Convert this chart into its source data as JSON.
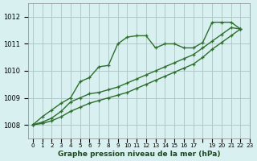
{
  "title": "Graphe pression niveau de la mer (hPa)",
  "bg_color": "#d8f0f0",
  "grid_color": "#b0c8c8",
  "line_color": "#2d6e2d",
  "ylim": [
    1007.5,
    1012.5
  ],
  "yticks": [
    1008,
    1009,
    1010,
    1011,
    1012
  ],
  "series1": [
    1008.0,
    1008.3,
    1008.55,
    1008.8,
    1009.0,
    1009.6,
    1009.75,
    1010.15,
    1010.2,
    1011.0,
    1011.25,
    1011.3,
    1011.3,
    1010.85,
    1011.0,
    1011.0,
    1010.85,
    1010.85,
    1011.05,
    1011.8,
    1011.8,
    1011.8,
    1011.55
  ],
  "series2": [
    1008.0,
    1008.1,
    1008.25,
    1008.5,
    1008.85,
    1009.0,
    1009.15,
    1009.2,
    1009.3,
    1009.4,
    1009.55,
    1009.7,
    1009.85,
    1010.0,
    1010.15,
    1010.3,
    1010.45,
    1010.6,
    1010.85,
    1011.1,
    1011.35,
    1011.6,
    1011.55
  ],
  "series3": [
    1008.0,
    1008.05,
    1008.15,
    1008.3,
    1008.5,
    1008.65,
    1008.8,
    1008.9,
    1009.0,
    1009.1,
    1009.2,
    1009.35,
    1009.5,
    1009.65,
    1009.8,
    1009.95,
    1010.1,
    1010.25,
    1010.5,
    1010.8,
    1011.05,
    1011.3,
    1011.55
  ],
  "x_labels": [
    "0",
    "1",
    "2",
    "3",
    "4",
    "5",
    "6",
    "7",
    "8",
    "9",
    "10",
    "11",
    "12",
    "13",
    "14",
    "15",
    "16",
    "17",
    "",
    "19",
    "20",
    "21",
    "22",
    "23"
  ]
}
